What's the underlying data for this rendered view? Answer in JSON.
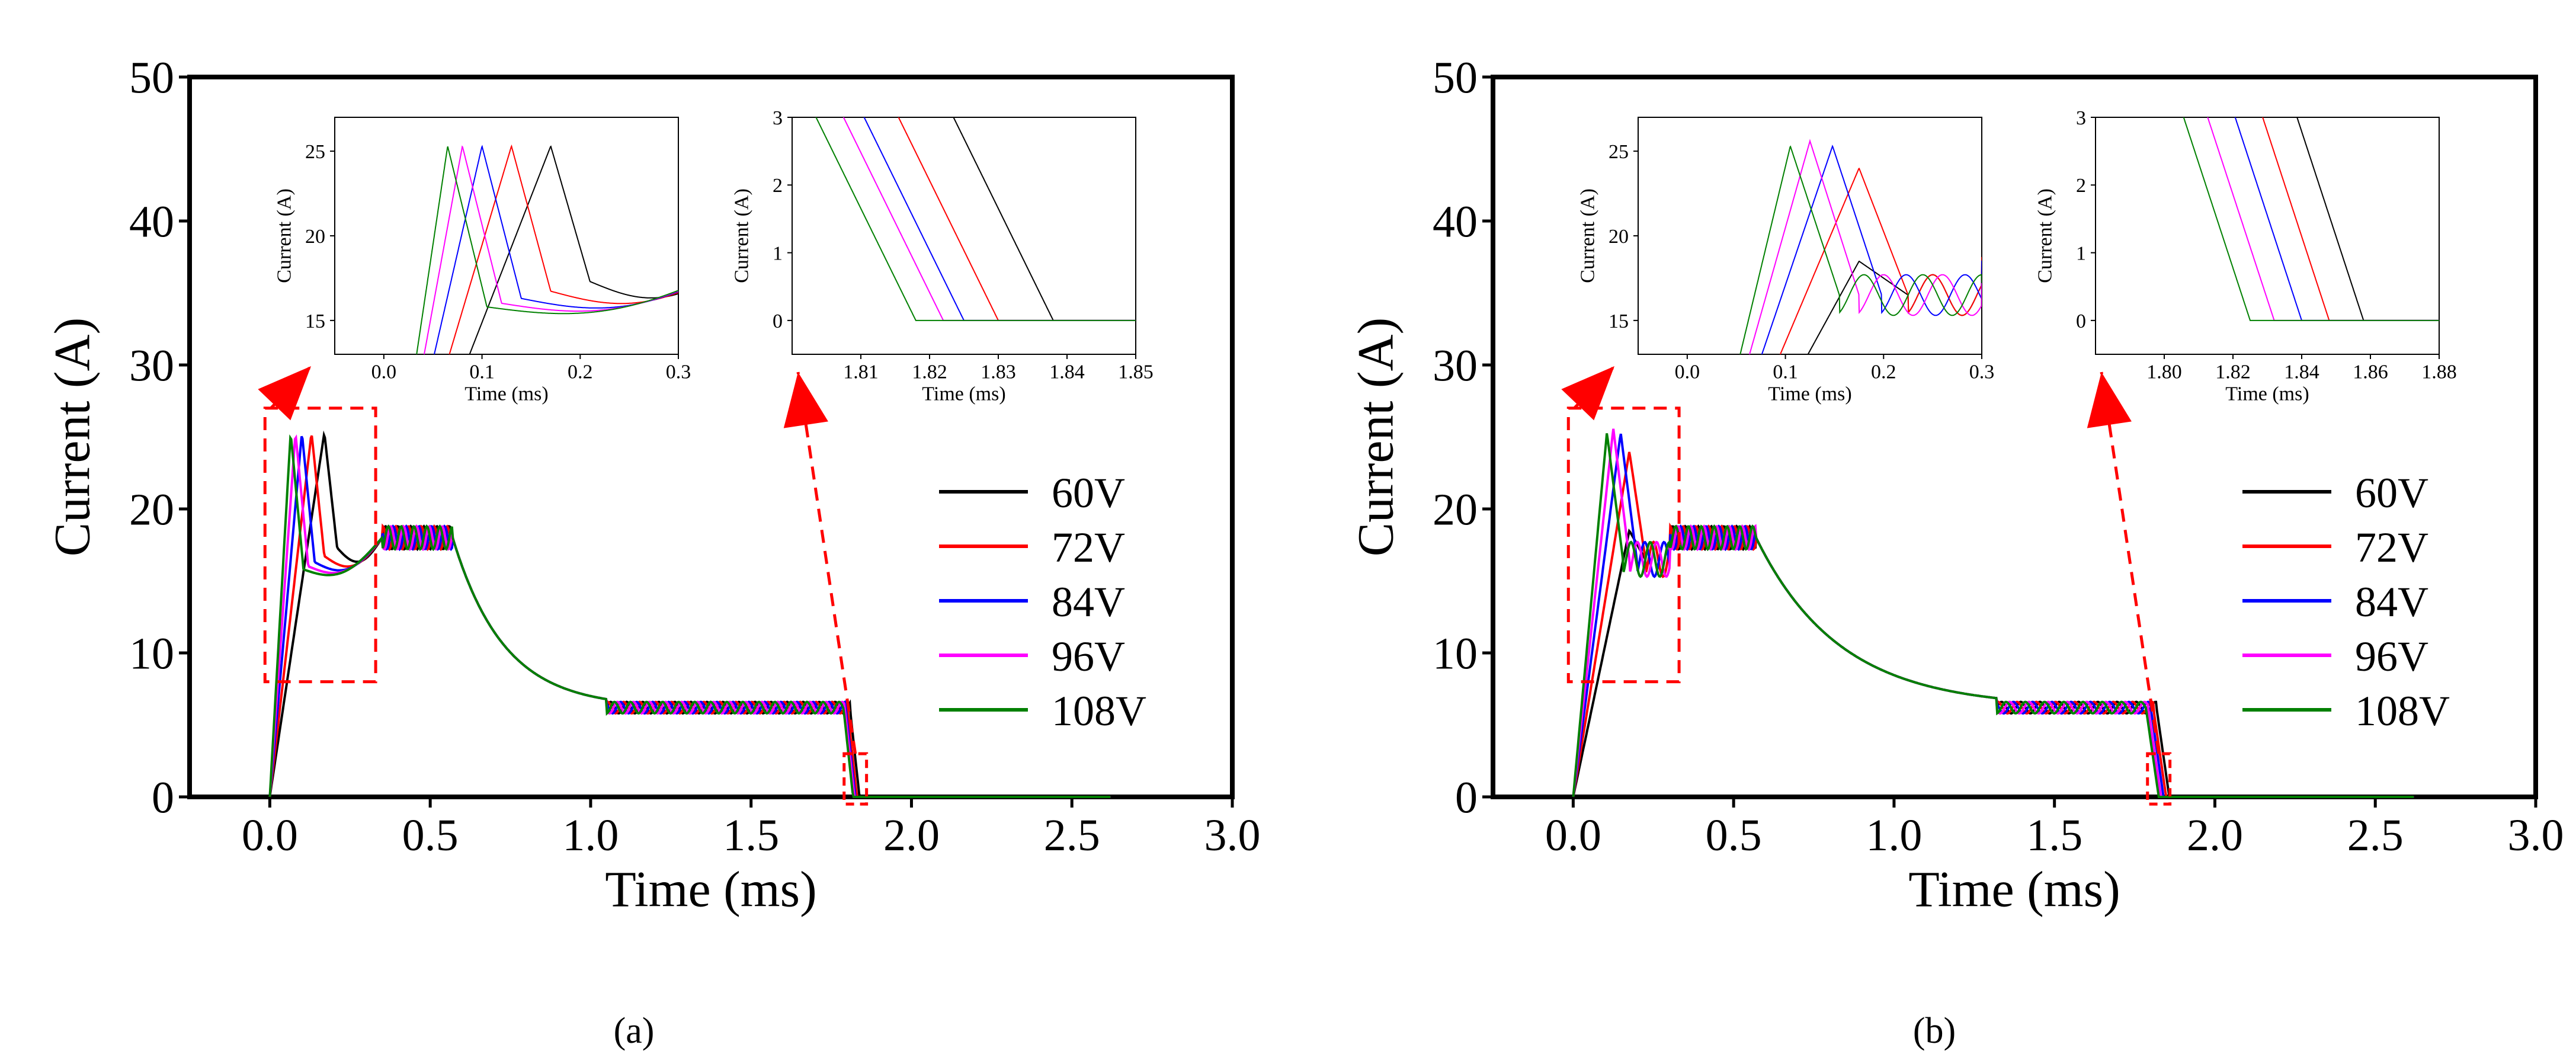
{
  "figure": {
    "panel_labels": [
      "(a)",
      "(b)"
    ]
  },
  "chart_data": [
    {
      "type": "line",
      "panel": "(a)",
      "xlabel": "Time (ms)",
      "ylabel": "Current (A)",
      "xlim": [
        -0.25,
        3.0
      ],
      "ylim": [
        0,
        50
      ],
      "xticks": [
        0.0,
        0.5,
        1.0,
        1.5,
        2.0,
        2.5,
        3.0
      ],
      "xtick_labels": [
        "0.0",
        "0.5",
        "1.0",
        "1.5",
        "2.0",
        "2.5",
        "3.0"
      ],
      "yticks": [
        0,
        10,
        20,
        30,
        40,
        50
      ],
      "ytick_labels": [
        "0",
        "10",
        "20",
        "30",
        "40",
        "50"
      ],
      "legend_position": "center-right",
      "series": [
        {
          "name": "60V",
          "color": "#000000",
          "peak_time": 0.17,
          "fall_time": 1.838,
          "phase": 0.0
        },
        {
          "name": "72V",
          "color": "#ff0000",
          "peak_time": 0.13,
          "fall_time": 1.83,
          "phase": 0.04
        },
        {
          "name": "84V",
          "color": "#0000ff",
          "peak_time": 0.1,
          "fall_time": 1.825,
          "phase": 0.08
        },
        {
          "name": "96V",
          "color": "#ff00ff",
          "peak_time": 0.08,
          "fall_time": 1.822,
          "phase": 0.12
        },
        {
          "name": "108V",
          "color": "#008000",
          "peak_time": 0.065,
          "fall_time": 1.818,
          "phase": 0.16
        }
      ],
      "profile": {
        "peak_current": 25.3,
        "hold_current": 18.0,
        "hold_ripple": 0.8,
        "hold_end": 0.57,
        "tail_current": 6.2,
        "tail_start": 1.05,
        "tail_ripple": 0.4,
        "end_time": 2.62
      },
      "zoom_insets": [
        {
          "xlabel": "Time (ms)",
          "ylabel": "Current (A)",
          "xlim": [
            -0.05,
            0.3
          ],
          "ylim": [
            13,
            27
          ],
          "xticks": [
            0.0,
            0.1,
            0.2,
            0.3
          ],
          "xtick_labels": [
            "0.0",
            "0.1",
            "0.2",
            "0.3"
          ],
          "yticks": [
            15,
            20,
            25
          ],
          "ytick_labels": [
            "15",
            "20",
            "25"
          ]
        },
        {
          "xlabel": "Time (ms)",
          "ylabel": "Current (A)",
          "xlim": [
            1.8,
            1.85
          ],
          "ylim": [
            -0.5,
            3
          ],
          "xticks": [
            1.81,
            1.82,
            1.83,
            1.84,
            1.85
          ],
          "xtick_labels": [
            "1.81",
            "1.82",
            "1.83",
            "1.84",
            "1.85"
          ],
          "yticks": [
            0,
            1,
            2,
            3
          ],
          "ytick_labels": [
            "0",
            "1",
            "2",
            "3"
          ]
        }
      ]
    },
    {
      "type": "line",
      "panel": "(b)",
      "xlabel": "Time (ms)",
      "ylabel": "Current (A)",
      "xlim": [
        -0.25,
        3.0
      ],
      "ylim": [
        0,
        50
      ],
      "xticks": [
        0.0,
        0.5,
        1.0,
        1.5,
        2.0,
        2.5,
        3.0
      ],
      "xtick_labels": [
        "0.0",
        "0.5",
        "1.0",
        "1.5",
        "2.0",
        "2.5",
        "3.0"
      ],
      "yticks": [
        0,
        10,
        20,
        30,
        40,
        50
      ],
      "ytick_labels": [
        "0",
        "10",
        "20",
        "30",
        "40",
        "50"
      ],
      "legend_position": "center-right",
      "series": [
        {
          "name": "60V",
          "color": "#000000",
          "peak_time": 0.175,
          "peak_current": 18.5,
          "fall_time": 1.858,
          "phase": 0.0
        },
        {
          "name": "72V",
          "color": "#ff0000",
          "peak_time": 0.175,
          "peak_current": 24.0,
          "fall_time": 1.848,
          "phase": 0.04
        },
        {
          "name": "84V",
          "color": "#0000ff",
          "peak_time": 0.148,
          "peak_current": 25.3,
          "fall_time": 1.84,
          "phase": 0.08
        },
        {
          "name": "96V",
          "color": "#ff00ff",
          "peak_time": 0.125,
          "peak_current": 25.6,
          "fall_time": 1.832,
          "phase": 0.12
        },
        {
          "name": "108V",
          "color": "#008000",
          "peak_time": 0.105,
          "peak_current": 25.3,
          "fall_time": 1.825,
          "phase": 0.16
        }
      ],
      "profile": {
        "hold_current": 18.0,
        "hold_ripple": 0.8,
        "hold_end": 0.57,
        "tail_current": 6.2,
        "tail_start": 1.32,
        "tail_ripple": 0.4,
        "end_time": 2.62
      },
      "zoom_insets": [
        {
          "xlabel": "Time (ms)",
          "ylabel": "Current (A)",
          "xlim": [
            -0.05,
            0.3
          ],
          "ylim": [
            13,
            27
          ],
          "xticks": [
            0.0,
            0.1,
            0.2,
            0.3
          ],
          "xtick_labels": [
            "0.0",
            "0.1",
            "0.2",
            "0.3"
          ],
          "yticks": [
            15,
            20,
            25
          ],
          "ytick_labels": [
            "15",
            "20",
            "25"
          ]
        },
        {
          "xlabel": "Time (ms)",
          "ylabel": "Current (A)",
          "xlim": [
            1.78,
            1.88
          ],
          "ylim": [
            -0.5,
            3
          ],
          "xticks": [
            1.8,
            1.82,
            1.84,
            1.86,
            1.88
          ],
          "xtick_labels": [
            "1.80",
            "1.82",
            "1.84",
            "1.86",
            "1.88"
          ],
          "yticks": [
            0,
            1,
            2,
            3
          ],
          "ytick_labels": [
            "0",
            "1",
            "2",
            "3"
          ]
        }
      ]
    }
  ]
}
